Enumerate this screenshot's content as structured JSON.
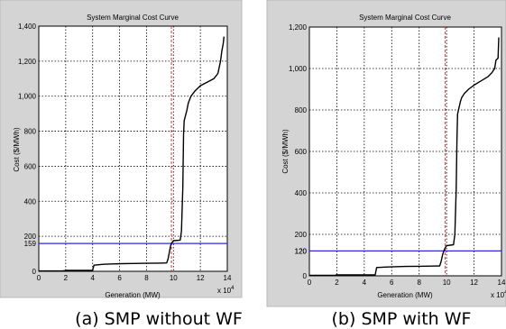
{
  "chart_data": [
    {
      "type": "line",
      "title": "System Marginal Cost Curve",
      "xlabel": "Generation (MW)",
      "ylabel": "Cost ($/MWh)",
      "x_multiplier_label": "x 10",
      "x_multiplier_exp": "4",
      "xlim": [
        0,
        14
      ],
      "ylim": [
        0,
        1400
      ],
      "x_ticks": [
        "0",
        "2",
        "4",
        "6",
        "8",
        "10",
        "12",
        "14"
      ],
      "y_ticks": [
        "0",
        "200",
        "400",
        "600",
        "800",
        "1,000",
        "1,200",
        "1,400"
      ],
      "y_ticks_values": [
        0,
        200,
        400,
        600,
        800,
        1000,
        1200,
        1400
      ],
      "smp_label": "159",
      "smp_value": 159,
      "dispatch_generation": 9.85,
      "grid": true,
      "series": [
        {
          "x": [
            0,
            1.8,
            2.0,
            4.0,
            4.1,
            4.8,
            5.5,
            6.2,
            7.0,
            8.0,
            9.0,
            9.5,
            9.6,
            9.7,
            9.8,
            9.9,
            10.0,
            10.5,
            10.6,
            10.7,
            10.75,
            10.8,
            11.0,
            11.1,
            11.3,
            11.6,
            12.0,
            12.5,
            13.0,
            13.3,
            13.5,
            13.6,
            13.7,
            13.75
          ],
          "y": [
            2,
            2,
            5,
            5,
            35,
            40,
            42,
            44,
            45,
            46,
            47,
            48,
            70,
            110,
            150,
            165,
            175,
            178,
            230,
            480,
            780,
            860,
            920,
            960,
            1000,
            1030,
            1060,
            1080,
            1100,
            1130,
            1200,
            1260,
            1300,
            1340
          ]
        }
      ]
    },
    {
      "type": "line",
      "title": "System Marginal Cost Curve",
      "xlabel": "Generation (MW)",
      "ylabel": "Cost ($/MWh)",
      "x_multiplier_label": "x 10",
      "x_multiplier_exp": "4",
      "xlim": [
        0,
        14
      ],
      "ylim": [
        0,
        1200
      ],
      "x_ticks": [
        "0",
        "2",
        "4",
        "6",
        "8",
        "10",
        "12",
        "14"
      ],
      "y_ticks": [
        "0",
        "120",
        "200",
        "400",
        "600",
        "800",
        "1,000",
        "1,200"
      ],
      "y_ticks_values": [
        0,
        120,
        200,
        400,
        600,
        800,
        1000,
        1200
      ],
      "smp_label": "120",
      "smp_value": 120,
      "dispatch_generation": 9.9,
      "grid": true,
      "series": [
        {
          "x": [
            0,
            1.8,
            2.0,
            4.8,
            4.9,
            5.5,
            6.2,
            7.0,
            8.0,
            9.0,
            9.5,
            9.6,
            9.7,
            9.8,
            9.9,
            10.0,
            10.5,
            10.6,
            10.7,
            10.75,
            10.8,
            11.0,
            11.1,
            11.3,
            11.6,
            12.0,
            12.5,
            13.0,
            13.3,
            13.5,
            13.6,
            13.75,
            13.8
          ],
          "y": [
            2,
            2,
            5,
            5,
            40,
            42,
            44,
            45,
            46,
            47,
            48,
            70,
            100,
            120,
            135,
            145,
            150,
            200,
            420,
            650,
            780,
            840,
            860,
            880,
            900,
            920,
            940,
            960,
            980,
            1000,
            1040,
            1050,
            1150
          ]
        }
      ]
    }
  ],
  "captions": {
    "a": "(a)  SMP  without  WF",
    "b": "(b)  SMP  with  WF"
  }
}
